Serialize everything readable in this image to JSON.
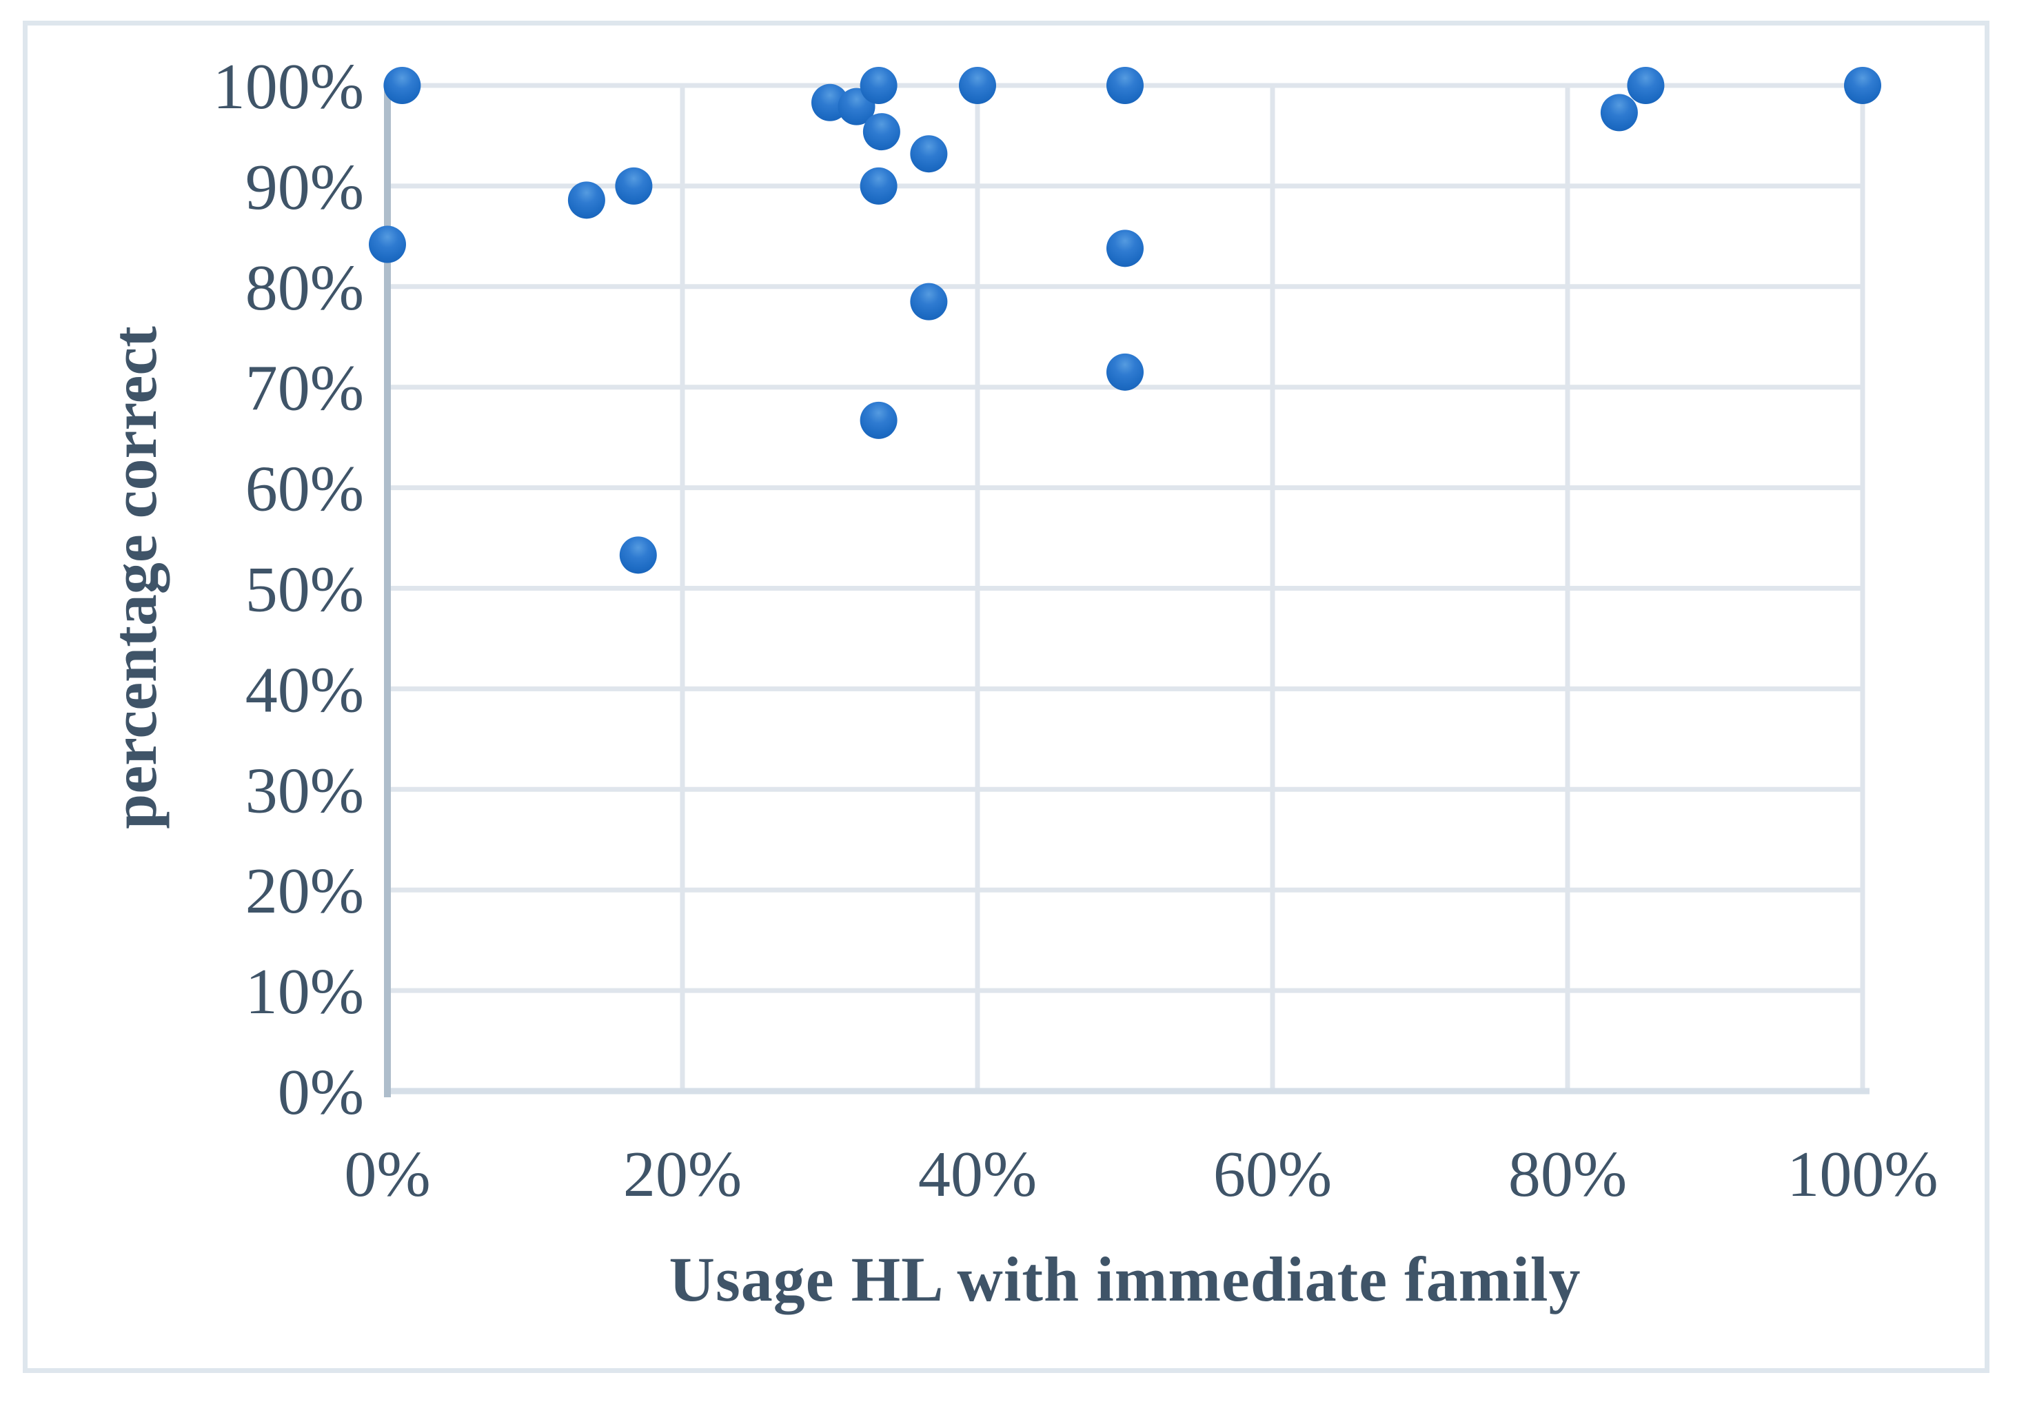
{
  "chart_data": {
    "type": "scatter",
    "title": "",
    "xlabel": "Usage HL with immediate family",
    "ylabel": "percentage correct",
    "xlim": [
      0,
      100
    ],
    "ylim": [
      0,
      100
    ],
    "grid": "on",
    "legend": "none",
    "x_ticks": [
      "0%",
      "20%",
      "40%",
      "60%",
      "80%",
      "100%"
    ],
    "x_tick_values": [
      0,
      20,
      40,
      60,
      80,
      100
    ],
    "y_ticks": [
      "0%",
      "10%",
      "20%",
      "30%",
      "40%",
      "50%",
      "60%",
      "70%",
      "80%",
      "90%",
      "100%"
    ],
    "y_tick_values": [
      0,
      10,
      20,
      30,
      40,
      50,
      60,
      70,
      80,
      90,
      100
    ],
    "points": [
      {
        "x": 1,
        "y": 100
      },
      {
        "x": 0,
        "y": 84.2
      },
      {
        "x": 13.5,
        "y": 88.6
      },
      {
        "x": 16.7,
        "y": 90
      },
      {
        "x": 17,
        "y": 53.3
      },
      {
        "x": 30,
        "y": 98.3
      },
      {
        "x": 31.8,
        "y": 97.9
      },
      {
        "x": 33.3,
        "y": 100
      },
      {
        "x": 33.5,
        "y": 95.4
      },
      {
        "x": 33.3,
        "y": 90
      },
      {
        "x": 33.3,
        "y": 66.7
      },
      {
        "x": 36.7,
        "y": 93.2
      },
      {
        "x": 36.7,
        "y": 78.5
      },
      {
        "x": 40,
        "y": 100
      },
      {
        "x": 50,
        "y": 100
      },
      {
        "x": 50,
        "y": 83.8
      },
      {
        "x": 50,
        "y": 71.5
      },
      {
        "x": 83.5,
        "y": 97.3
      },
      {
        "x": 85.3,
        "y": 100
      },
      {
        "x": 100,
        "y": 100
      }
    ]
  },
  "style": {
    "background": "#FFFFFF",
    "text_color": "#3F5468",
    "gridline_color": "#DFE5EC",
    "y_axis_color": "#AEBDCB",
    "x_axis_color": "#D6DFE8",
    "frame_border_color": "#DEE6ED",
    "marker_fill": "#1E6CC4",
    "marker_edge": "#1660B6",
    "marker_highlight": "#559BE0"
  }
}
